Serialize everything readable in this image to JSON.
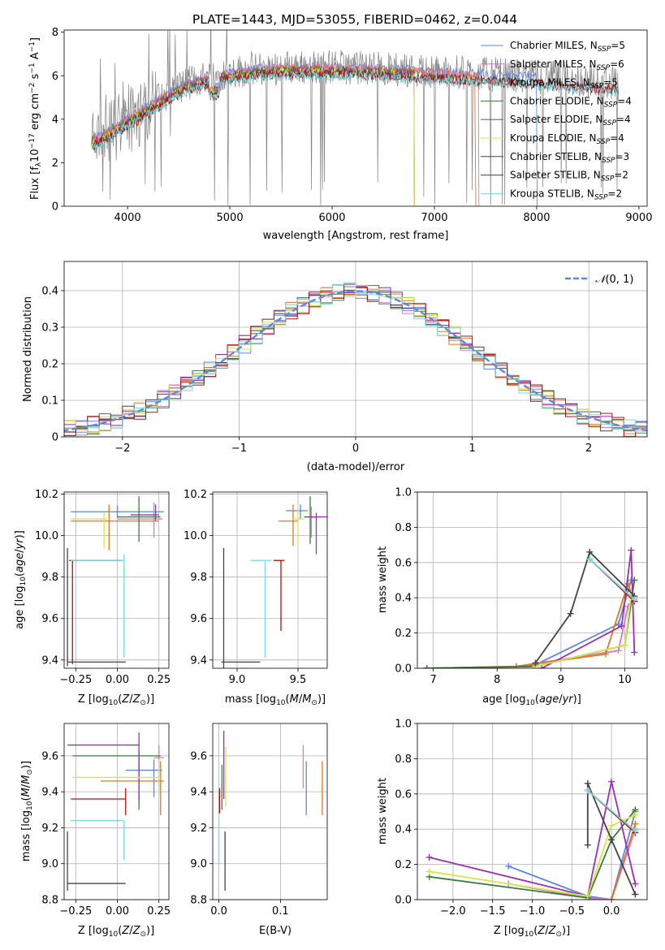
{
  "figure_title": "PLATE=1443, MJD=53055, FIBERID=0462, z=0.044",
  "colors": {
    "Chabrier MILES": "#5f87e0",
    "Salpeter MILES": "#d878c8",
    "Kroupa MILES": "#e07820",
    "Chabrier ELODIE": "#3c7a3c",
    "Salpeter ELODIE": "#9a2fb0",
    "Kroupa ELODIE": "#d6e648",
    "Chabrier STELIB": "#444444",
    "Salpeter STELIB": "#b01010",
    "Kroupa STELIB": "#78d8e0"
  },
  "chart_data": [
    {
      "id": "spectrum",
      "type": "line",
      "title": "PLATE=1443, MJD=53055, FIBERID=0462, z=0.044",
      "xlabel": "wavelength [Angstrom, rest frame]",
      "ylabel": "Flux [f_λ 10^-17 erg cm^-2 s^-1 A^-1]",
      "xlim": [
        3380,
        9080
      ],
      "ylim": [
        0,
        8.1
      ],
      "xticks": [
        4000,
        5000,
        6000,
        7000,
        8000,
        9000
      ],
      "yticks": [
        0,
        2,
        4,
        6,
        8
      ],
      "observed_color": "#808080",
      "continuum": {
        "x": [
          3650,
          3800,
          3950,
          4100,
          4300,
          4500,
          4800,
          5200,
          5600,
          6000,
          6400,
          6800,
          7200,
          7600,
          8000,
          8400,
          8800
        ],
        "y": [
          3.1,
          3.4,
          3.9,
          4.3,
          4.9,
          5.5,
          6.0,
          6.3,
          6.4,
          6.4,
          6.35,
          6.25,
          6.15,
          6.05,
          5.95,
          5.8,
          5.65
        ]
      },
      "series": [
        {
          "name": "Chabrier MILES, N_SSP=5",
          "model": "Chabrier MILES",
          "end": 8000
        },
        {
          "name": "Salpeter MILES, N_SSP=6",
          "model": "Salpeter MILES",
          "end": 7430
        },
        {
          "name": "Kroupa MILES, N_SSP=5",
          "model": "Kroupa MILES",
          "end": 7400
        },
        {
          "name": "Chabrier ELODIE, N_SSP=4",
          "model": "Chabrier ELODIE",
          "end": 6800
        },
        {
          "name": "Salpeter ELODIE, N_SSP=4",
          "model": "Salpeter ELODIE",
          "end": 6800
        },
        {
          "name": "Kroupa ELODIE, N_SSP=4",
          "model": "Kroupa ELODIE",
          "end": 6800
        },
        {
          "name": "Chabrier STELIB, N_SSP=3",
          "model": "Chabrier STELIB",
          "end": 8800
        },
        {
          "name": "Salpeter STELIB, N_SSP=2",
          "model": "Salpeter STELIB",
          "end": 8800
        },
        {
          "name": "Kroupa STELIB, N_SSP=2",
          "model": "Kroupa STELIB",
          "end": 8800
        }
      ],
      "legend": "top-right",
      "grid": false
    },
    {
      "id": "residuals",
      "type": "line",
      "xlabel": "(data-model)/error",
      "ylabel": "Normed distribution",
      "xlim": [
        -2.5,
        2.5
      ],
      "ylim": [
        0,
        0.48
      ],
      "xticks": [
        -2,
        -1,
        0,
        1,
        2
      ],
      "yticks": [
        0.0,
        0.1,
        0.2,
        0.3,
        0.4
      ],
      "bin_width": 0.1,
      "reference": {
        "name": "N(0,1)",
        "color": "#5f87e0"
      },
      "legend": "top-right",
      "grid": true
    },
    {
      "id": "age_vs_Z",
      "type": "scatter",
      "xlabel": "Z [log10(Z/Z_sun)]",
      "ylabel": "age [log10(age/yr)]",
      "xlim": [
        -0.32,
        0.31
      ],
      "ylim": [
        9.36,
        10.21
      ],
      "xticks": [
        -0.25,
        0.0,
        0.25
      ],
      "xticklabels": [
        "−0.25",
        "0.00",
        "0.25"
      ],
      "yticks": [
        9.4,
        9.6,
        9.8,
        10.0,
        10.2
      ],
      "yticklabels": [
        "9.4",
        "9.6",
        "9.8",
        "10.0",
        "10.2"
      ],
      "grid": true,
      "points": [
        {
          "model": "Chabrier MILES",
          "x": 0.0,
          "y": 10.115,
          "dx": [
            -0.28,
            0.28
          ],
          "dy": [
            -0.03,
            0.03
          ]
        },
        {
          "model": "Salpeter MILES",
          "x": 0.22,
          "y": 10.08,
          "dx": [
            -0.22,
            0.05
          ],
          "dy": [
            -0.09,
            0.08
          ]
        },
        {
          "model": "Kroupa MILES",
          "x": -0.05,
          "y": 10.07,
          "dx": [
            -0.23,
            0.3
          ],
          "dy": [
            -0.14,
            0.08
          ]
        },
        {
          "model": "Chabrier ELODIE",
          "x": 0.13,
          "y": 10.09,
          "dx": [
            -0.13,
            0.13
          ],
          "dy": [
            -0.12,
            0.1
          ]
        },
        {
          "model": "Salpeter ELODIE",
          "x": 0.23,
          "y": 10.1,
          "dx": [
            -0.15,
            0.02
          ],
          "dy": [
            -0.03,
            0.05
          ]
        },
        {
          "model": "Kroupa ELODIE",
          "x": -0.08,
          "y": 10.08,
          "dx": [
            -0.2,
            0.02
          ],
          "dy": [
            -0.14,
            0.03
          ]
        },
        {
          "model": "Chabrier STELIB",
          "x": -0.3,
          "y": 9.39,
          "dx": [
            0.0,
            0.35
          ],
          "dy": [
            -0.02,
            0.55
          ]
        },
        {
          "model": "Salpeter STELIB",
          "x": -0.27,
          "y": 9.88,
          "dx": [
            -0.02,
            0.3
          ],
          "dy": [
            -0.5,
            0.0
          ]
        },
        {
          "model": "Kroupa STELIB",
          "x": 0.04,
          "y": 9.88,
          "dx": [
            -0.32,
            0.0
          ],
          "dy": [
            -0.47,
            0.03
          ]
        }
      ]
    },
    {
      "id": "age_vs_mass",
      "type": "scatter",
      "xlabel": "mass [log10(M/M_sun)]",
      "xlim": [
        8.8,
        9.74
      ],
      "ylim": [
        9.36,
        10.21
      ],
      "xticks": [
        9.0,
        9.5
      ],
      "xticklabels": [
        "9.0",
        "9.5"
      ],
      "yticks": [
        9.4,
        9.6,
        9.8,
        10.0,
        10.2
      ],
      "yticklabels": [
        "9.4",
        "9.6",
        "9.8",
        "10.0",
        "10.2"
      ],
      "grid": true,
      "points": [
        {
          "model": "Chabrier MILES",
          "x": 9.52,
          "y": 10.12,
          "dx": [
            -0.12,
            0.06
          ],
          "dy": [
            -0.04,
            0.03
          ]
        },
        {
          "model": "Salpeter MILES",
          "x": 9.61,
          "y": 10.09,
          "dx": [
            -0.05,
            0.05
          ],
          "dy": [
            -0.1,
            0.05
          ]
        },
        {
          "model": "Kroupa MILES",
          "x": 9.46,
          "y": 10.07,
          "dx": [
            -0.12,
            0.04
          ],
          "dy": [
            -0.12,
            0.08
          ]
        },
        {
          "model": "Chabrier ELODIE",
          "x": 9.6,
          "y": 10.09,
          "dx": [
            -0.05,
            0.05
          ],
          "dy": [
            -0.13,
            0.1
          ]
        },
        {
          "model": "Salpeter ELODIE",
          "x": 9.65,
          "y": 10.09,
          "dx": [
            -0.07,
            0.1
          ],
          "dy": [
            -0.18,
            0.02
          ]
        },
        {
          "model": "Kroupa ELODIE",
          "x": 9.5,
          "y": 10.08,
          "dx": [
            -0.05,
            0.05
          ],
          "dy": [
            -0.13,
            0.05
          ]
        },
        {
          "model": "Chabrier STELIB",
          "x": 8.89,
          "y": 9.39,
          "dx": [
            -0.02,
            0.3
          ],
          "dy": [
            -0.03,
            0.55
          ]
        },
        {
          "model": "Salpeter STELIB",
          "x": 9.36,
          "y": 9.88,
          "dx": [
            -0.06,
            0.03
          ],
          "dy": [
            -0.34,
            0.0
          ]
        },
        {
          "model": "Kroupa STELIB",
          "x": 9.23,
          "y": 9.88,
          "dx": [
            -0.12,
            0.05
          ],
          "dy": [
            -0.47,
            0.0
          ]
        }
      ]
    },
    {
      "id": "mass_weight_vs_age",
      "type": "line",
      "xlabel": "age [log10(age/yr)]",
      "ylabel": "mass weight",
      "xlim": [
        6.75,
        10.35
      ],
      "ylim": [
        0.0,
        1.0
      ],
      "xticks": [
        7,
        8,
        9,
        10
      ],
      "xticklabels": [
        "7",
        "8",
        "9",
        "10"
      ],
      "yticks": [
        0.0,
        0.2,
        0.4,
        0.6,
        0.8,
        1.0
      ],
      "yticklabels": [
        "0.0",
        "0.2",
        "0.4",
        "0.6",
        "0.8",
        "1.0"
      ],
      "grid": true,
      "series": [
        {
          "model": "Chabrier MILES",
          "x": [
            6.9,
            8.3,
            8.6,
            9.9,
            10.1
          ],
          "y": [
            0.0,
            0.01,
            0.02,
            0.25,
            0.5
          ]
        },
        {
          "model": "Salpeter MILES",
          "x": [
            6.9,
            8.3,
            9.9,
            10.05,
            10.15
          ],
          "y": [
            0.0,
            0.01,
            0.1,
            0.35,
            0.4
          ]
        },
        {
          "model": "Kroupa MILES",
          "x": [
            6.9,
            8.3,
            9.7,
            10.05,
            10.15
          ],
          "y": [
            0.0,
            0.01,
            0.08,
            0.48,
            0.38
          ]
        },
        {
          "model": "Chabrier ELODIE",
          "x": [
            6.9,
            8.6,
            10.0,
            10.15
          ],
          "y": [
            0.0,
            0.01,
            0.13,
            0.5
          ]
        },
        {
          "model": "Salpeter ELODIE",
          "x": [
            8.7,
            9.95,
            10.1,
            10.15
          ],
          "y": [
            0.0,
            0.24,
            0.67,
            0.09
          ]
        },
        {
          "model": "Kroupa ELODIE",
          "x": [
            8.6,
            10.0,
            10.1
          ],
          "y": [
            0.01,
            0.13,
            0.42
          ]
        },
        {
          "model": "Chabrier STELIB",
          "x": [
            8.6,
            9.15,
            9.45,
            10.15
          ],
          "y": [
            0.03,
            0.31,
            0.66,
            0.41
          ]
        },
        {
          "model": "Salpeter STELIB",
          "x": [
            9.45,
            10.15
          ],
          "y": [
            0.62,
            0.38
          ]
        },
        {
          "model": "Kroupa STELIB",
          "x": [
            9.45,
            10.15
          ],
          "y": [
            0.62,
            0.39
          ]
        }
      ]
    },
    {
      "id": "mass_vs_Z",
      "type": "scatter",
      "xlabel": "Z [log10(Z/Z_sun)]",
      "ylabel": "mass [log10(M/M_sun)]",
      "xlim": [
        -0.32,
        0.31
      ],
      "ylim": [
        8.8,
        9.78
      ],
      "xticks": [
        -0.25,
        0.0,
        0.25
      ],
      "xticklabels": [
        "−0.25",
        "0.00",
        "0.25"
      ],
      "yticks": [
        8.8,
        9.0,
        9.2,
        9.4,
        9.6
      ],
      "yticklabels": [
        "8.8",
        "9.0",
        "9.2",
        "9.4",
        "9.6"
      ],
      "grid": true,
      "points": [
        {
          "model": "Chabrier MILES",
          "x": 0.22,
          "y": 9.52,
          "dx": [
            -0.17,
            0.05
          ],
          "dy": [
            -0.15,
            0.06
          ]
        },
        {
          "model": "Salpeter MILES",
          "x": 0.25,
          "y": 9.59,
          "dx": [
            -0.03,
            0.03
          ],
          "dy": [
            -0.2,
            0.07
          ]
        },
        {
          "model": "Kroupa MILES",
          "x": 0.26,
          "y": 9.46,
          "dx": [
            -0.36,
            0.02
          ],
          "dy": [
            -0.19,
            0.11
          ]
        },
        {
          "model": "Chabrier ELODIE",
          "x": 0.13,
          "y": 9.6,
          "dx": [
            -0.4,
            0.13
          ],
          "dy": [
            -0.3,
            0.03
          ]
        },
        {
          "model": "Salpeter ELODIE",
          "x": 0.13,
          "y": 9.66,
          "dx": [
            -0.43,
            0.0
          ],
          "dy": [
            -0.31,
            0.07
          ]
        },
        {
          "model": "Kroupa ELODIE",
          "x": 0.25,
          "y": 9.48,
          "dx": [
            -0.52,
            0.02
          ],
          "dy": [
            -0.1,
            0.1
          ]
        },
        {
          "model": "Chabrier STELIB",
          "x": -0.3,
          "y": 8.89,
          "dx": [
            0.0,
            0.35
          ],
          "dy": [
            -0.04,
            0.29
          ]
        },
        {
          "model": "Salpeter STELIB",
          "x": 0.05,
          "y": 9.36,
          "dx": [
            -0.33,
            0.0
          ],
          "dy": [
            -0.09,
            0.06
          ]
        },
        {
          "model": "Kroupa STELIB",
          "x": 0.04,
          "y": 9.24,
          "dx": [
            -0.32,
            0.0
          ],
          "dy": [
            -0.22,
            0.0
          ]
        }
      ]
    },
    {
      "id": "mass_vs_ebv",
      "type": "scatter",
      "xlabel": "E(B-V)",
      "xlim": [
        -0.01,
        0.176
      ],
      "ylim": [
        8.8,
        9.78
      ],
      "xticks": [
        0.0,
        0.1
      ],
      "xticklabels": [
        "0.0",
        "0.1"
      ],
      "yticks": [
        8.8,
        9.0,
        9.2,
        9.4,
        9.6
      ],
      "yticklabels": [
        "8.8",
        "9.0",
        "9.2",
        "9.4",
        "9.6"
      ],
      "grid": true,
      "points": [
        {
          "model": "Chabrier MILES",
          "x": 0.142,
          "y": 9.47,
          "dy": [
            -0.2,
            0.1
          ]
        },
        {
          "model": "Salpeter MILES",
          "x": 0.137,
          "y": 9.55,
          "dy": [
            -0.13,
            0.11
          ]
        },
        {
          "model": "Kroupa MILES",
          "x": 0.168,
          "y": 9.42,
          "dy": [
            -0.15,
            0.15
          ]
        },
        {
          "model": "Chabrier ELODIE",
          "x": 0.005,
          "y": 9.45,
          "dy": [
            -0.15,
            0.1
          ]
        },
        {
          "model": "Salpeter ELODIE",
          "x": 0.008,
          "y": 9.6,
          "dy": [
            -0.24,
            0.14
          ]
        },
        {
          "model": "Kroupa ELODIE",
          "x": 0.011,
          "y": 9.5,
          "dy": [
            -0.18,
            0.15
          ]
        },
        {
          "model": "Chabrier STELIB",
          "x": 0.01,
          "y": 9.0,
          "dy": [
            -0.15,
            0.18
          ]
        },
        {
          "model": "Salpeter STELIB",
          "x": 0.001,
          "y": 9.35,
          "dy": [
            -0.07,
            0.07
          ]
        },
        {
          "model": "Kroupa STELIB",
          "x": 0.0,
          "y": 9.1,
          "dy": [
            -0.1,
            0.15
          ]
        }
      ]
    },
    {
      "id": "mass_weight_vs_Z",
      "type": "line",
      "xlabel": "Z [log10(Z/Z_sun)]",
      "ylabel": "mass weight",
      "xlim": [
        -2.45,
        0.45
      ],
      "ylim": [
        0.0,
        1.0
      ],
      "xticks": [
        -2.0,
        -1.5,
        -1.0,
        -0.5,
        0.0
      ],
      "xticklabels": [
        "−2.0",
        "−1.5",
        "−1.0",
        "−0.5",
        "0.0"
      ],
      "yticks": [
        0.0,
        0.2,
        0.4,
        0.6,
        0.8,
        1.0
      ],
      "yticklabels": [
        "0.0",
        "0.2",
        "0.4",
        "0.6",
        "0.8",
        "1.0"
      ],
      "grid": true,
      "series": [
        {
          "model": "Chabrier MILES",
          "x": [
            -1.3,
            -0.3,
            0.0,
            0.3
          ],
          "y": [
            0.19,
            0.02,
            0.0,
            0.5
          ]
        },
        {
          "model": "Salpeter MILES",
          "x": [
            -1.3,
            -0.3,
            0.0,
            0.3
          ],
          "y": [
            0.09,
            0.01,
            0.0,
            0.4
          ]
        },
        {
          "model": "Kroupa MILES",
          "x": [
            -0.3,
            0.0,
            0.3
          ],
          "y": [
            0.0,
            0.0,
            0.43
          ]
        },
        {
          "model": "Chabrier ELODIE",
          "x": [
            -2.3,
            -0.3,
            0.0,
            0.3
          ],
          "y": [
            0.13,
            0.01,
            0.34,
            0.51
          ]
        },
        {
          "model": "Salpeter ELODIE",
          "x": [
            -2.3,
            -0.3,
            0.0,
            0.3
          ],
          "y": [
            0.24,
            0.02,
            0.67,
            0.09
          ]
        },
        {
          "model": "Kroupa ELODIE",
          "x": [
            -2.3,
            -0.3,
            0.0,
            0.3
          ],
          "y": [
            0.16,
            0.02,
            0.42,
            0.48
          ]
        },
        {
          "model": "Chabrier STELIB",
          "x": [
            -0.3,
            -0.3,
            0.0,
            0.3
          ],
          "y": [
            0.31,
            0.66,
            0.34,
            0.03
          ]
        },
        {
          "model": "Salpeter STELIB",
          "x": [
            -0.3,
            0.3
          ],
          "y": [
            0.62,
            0.38
          ]
        },
        {
          "model": "Kroupa STELIB",
          "x": [
            -0.3,
            0.3
          ],
          "y": [
            0.62,
            0.39
          ]
        }
      ]
    }
  ]
}
